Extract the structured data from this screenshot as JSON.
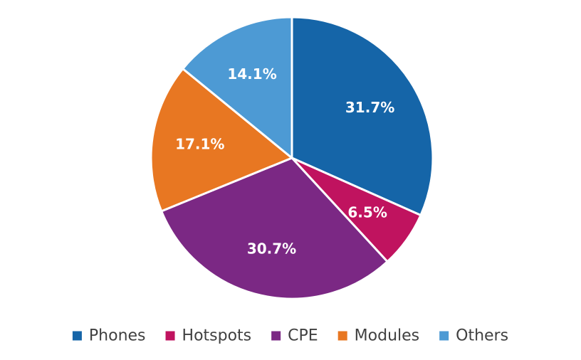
{
  "chart_data": {
    "type": "pie",
    "title": "",
    "legend_position": "bottom",
    "categories": [
      "Phones",
      "Hotspots",
      "CPE",
      "Modules",
      "Others"
    ],
    "values": [
      31.7,
      6.5,
      30.7,
      17.1,
      14.1
    ],
    "labels": [
      "31.7%",
      "6.5%",
      "30.7%",
      "17.1%",
      "14.1%"
    ],
    "colors": [
      "#1565a8",
      "#c0135f",
      "#7b2884",
      "#e87722",
      "#4d9ad4"
    ]
  }
}
